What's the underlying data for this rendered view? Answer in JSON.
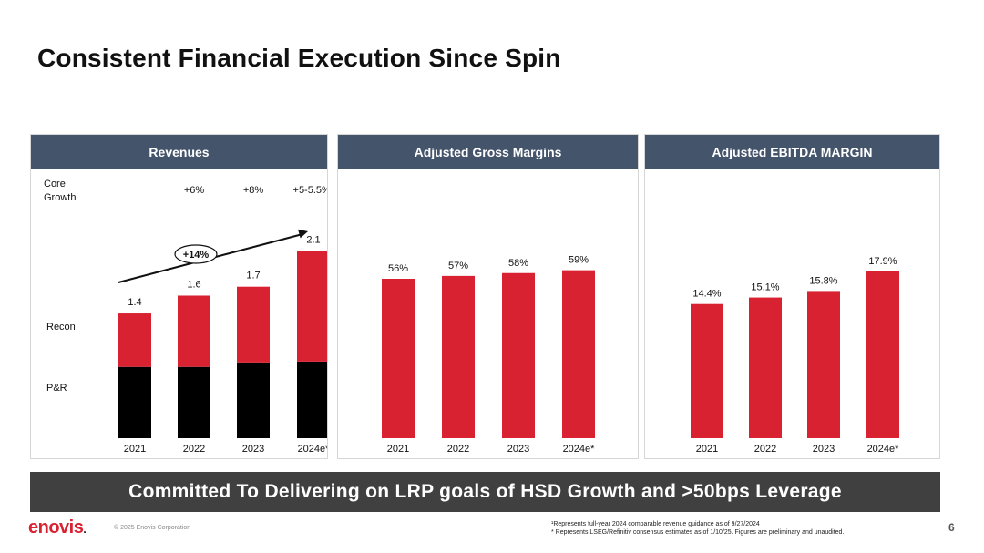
{
  "page": {
    "title": "Consistent Financial Execution Since Spin",
    "banner": "Committed To Delivering on LRP goals of HSD Growth and >50bps Leverage",
    "logo_text": "enovis",
    "logo_dot": ".",
    "copyright": "© 2025 Enovis Corporation",
    "footnote_1": "¹Represents full-year 2024 comparable revenue guidance as of 9/27/2024",
    "footnote_2": "* Represents LSEG/Refinitiv consensus estimates as of 1/10/25. Figures are preliminary and unaudited.",
    "page_number": "6"
  },
  "colors": {
    "red": "#d92231",
    "black": "#000000",
    "header": "#44546a",
    "banner": "#404040"
  },
  "chart_data": [
    {
      "type": "bar",
      "title": "Revenues",
      "stacked": true,
      "categories": [
        "2021",
        "2022",
        "2023",
        "2024e*"
      ],
      "series": [
        {
          "name": "P&R",
          "values": [
            0.8,
            0.8,
            0.85,
            0.86
          ]
        },
        {
          "name": "Recon",
          "values": [
            0.6,
            0.8,
            0.85,
            1.24
          ]
        }
      ],
      "totals_labels": [
        "1.4",
        "1.6",
        "1.7",
        "2.1"
      ],
      "core_growth_label": "Core Growth",
      "core_growth": [
        "",
        "+6%",
        "+8%",
        "+5-5.5%¹"
      ],
      "segment_labels": [
        "Recon",
        "P&R"
      ],
      "annotation": "+14%",
      "ylim": [
        0,
        2.3
      ]
    },
    {
      "type": "bar",
      "title": "Adjusted Gross Margins",
      "categories": [
        "2021",
        "2022",
        "2023",
        "2024e*"
      ],
      "values": [
        56,
        57,
        58,
        59
      ],
      "labels": [
        "56%",
        "57%",
        "58%",
        "59%"
      ],
      "ylim": [
        0,
        72
      ]
    },
    {
      "type": "bar",
      "title": "Adjusted EBITDA MARGIN",
      "categories": [
        "2021",
        "2022",
        "2023",
        "2024e*"
      ],
      "values": [
        14.4,
        15.1,
        15.8,
        17.9
      ],
      "labels": [
        "14.4%",
        "15.1%",
        "15.8%",
        "17.9%"
      ],
      "ylim": [
        0,
        22
      ]
    }
  ]
}
